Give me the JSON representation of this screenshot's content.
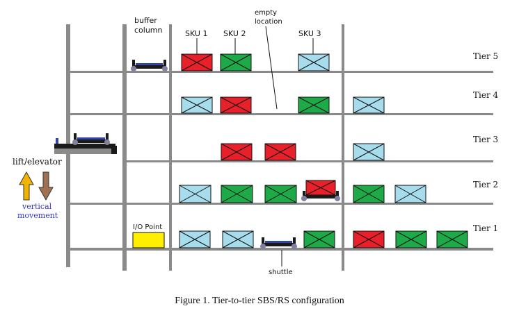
{
  "colors": {
    "rail": "#8a8a8a",
    "sku1": "#e8202a",
    "sku2": "#1faa4a",
    "sku3": "#a6dcec",
    "io_point": "#ffee00",
    "shuttle": "#1a1a1a",
    "shuttle_wheel": "#8080a0",
    "shuttle_accent": "#3344aa",
    "arrow_up": "#f0b400",
    "arrow_down": "#a07050"
  },
  "labels": {
    "buffer_column": [
      "buffer",
      "column"
    ],
    "empty_location": [
      "empty",
      "location"
    ],
    "sku1": "SKU 1",
    "sku2": "SKU 2",
    "sku3": "SKU 3",
    "io_point": "I/O Point",
    "shuttle": "shuttle",
    "lift": "lift/elevator",
    "vertical_movement": [
      "vertical",
      "movement"
    ]
  },
  "tiers": [
    "Tier 5",
    "Tier 4",
    "Tier 3",
    "Tier 2",
    "Tier 1"
  ],
  "caption": "Figure 1. Tier-to-tier SBS/RS configuration"
}
